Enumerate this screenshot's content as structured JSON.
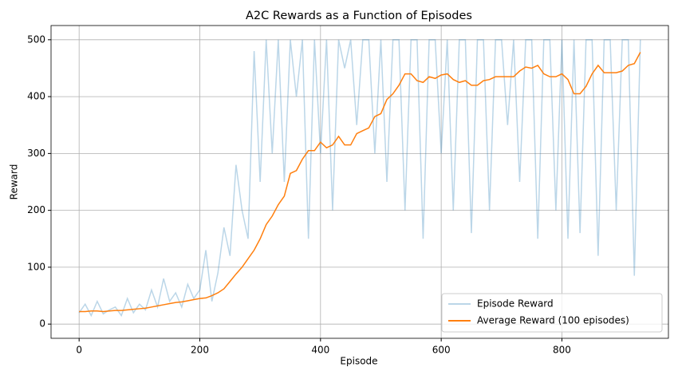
{
  "chart_data": {
    "type": "line",
    "title": "A2C Rewards as a Function of Episodes",
    "xlabel": "Episode",
    "ylabel": "Reward",
    "x": [
      0,
      10,
      20,
      30,
      40,
      50,
      60,
      70,
      80,
      90,
      100,
      110,
      120,
      130,
      140,
      150,
      160,
      170,
      180,
      190,
      200,
      210,
      220,
      230,
      240,
      250,
      260,
      270,
      280,
      290,
      300,
      310,
      320,
      330,
      340,
      350,
      360,
      370,
      380,
      390,
      400,
      410,
      420,
      430,
      440,
      450,
      460,
      470,
      480,
      490,
      500,
      510,
      520,
      530,
      540,
      550,
      560,
      570,
      580,
      590,
      600,
      610,
      620,
      630,
      640,
      650,
      660,
      670,
      680,
      690,
      700,
      710,
      720,
      730,
      740,
      750,
      760,
      770,
      780,
      790,
      800,
      810,
      820,
      830,
      840,
      850,
      860,
      870,
      880,
      890,
      900,
      910,
      920,
      930
    ],
    "series": [
      {
        "name": "Episode Reward",
        "color": "#1f77b4",
        "alpha": 0.3,
        "values": [
          20,
          35,
          15,
          40,
          18,
          25,
          30,
          15,
          45,
          20,
          35,
          25,
          60,
          30,
          80,
          40,
          55,
          30,
          70,
          45,
          60,
          130,
          40,
          90,
          170,
          120,
          280,
          200,
          150,
          480,
          250,
          500,
          300,
          500,
          250,
          500,
          400,
          500,
          150,
          500,
          300,
          500,
          200,
          500,
          450,
          500,
          350,
          500,
          500,
          300,
          500,
          250,
          500,
          500,
          200,
          500,
          500,
          150,
          500,
          500,
          300,
          500,
          200,
          500,
          500,
          160,
          500,
          500,
          200,
          500,
          500,
          350,
          500,
          250,
          500,
          500,
          150,
          500,
          500,
          200,
          500,
          150,
          500,
          160,
          500,
          500,
          120,
          500,
          500,
          200,
          500,
          500,
          85,
          500
        ]
      },
      {
        "name": "Average Reward (100 episodes)",
        "color": "#ff7f0e",
        "alpha": 1,
        "values": [
          22,
          22,
          23,
          23,
          22,
          23,
          24,
          24,
          25,
          26,
          27,
          28,
          30,
          32,
          34,
          36,
          38,
          39,
          41,
          43,
          45,
          46,
          50,
          55,
          62,
          75,
          88,
          100,
          115,
          130,
          150,
          175,
          190,
          210,
          225,
          265,
          270,
          290,
          305,
          305,
          320,
          310,
          315,
          330,
          315,
          315,
          335,
          340,
          345,
          365,
          370,
          395,
          405,
          420,
          440,
          440,
          428,
          425,
          435,
          432,
          438,
          440,
          430,
          425,
          428,
          420,
          420,
          428,
          430,
          435,
          435,
          435,
          435,
          445,
          452,
          450,
          455,
          440,
          435,
          435,
          440,
          430,
          405,
          405,
          418,
          440,
          455,
          442,
          442,
          442,
          445,
          455,
          458,
          478
        ]
      }
    ],
    "xlim": [
      -46.5,
      976.5
    ],
    "xticks": [
      0,
      200,
      400,
      600,
      800
    ],
    "ylim": [
      -25,
      525
    ],
    "yticks": [
      0,
      100,
      200,
      300,
      400,
      500
    ],
    "grid": true,
    "legend": "lower right"
  }
}
